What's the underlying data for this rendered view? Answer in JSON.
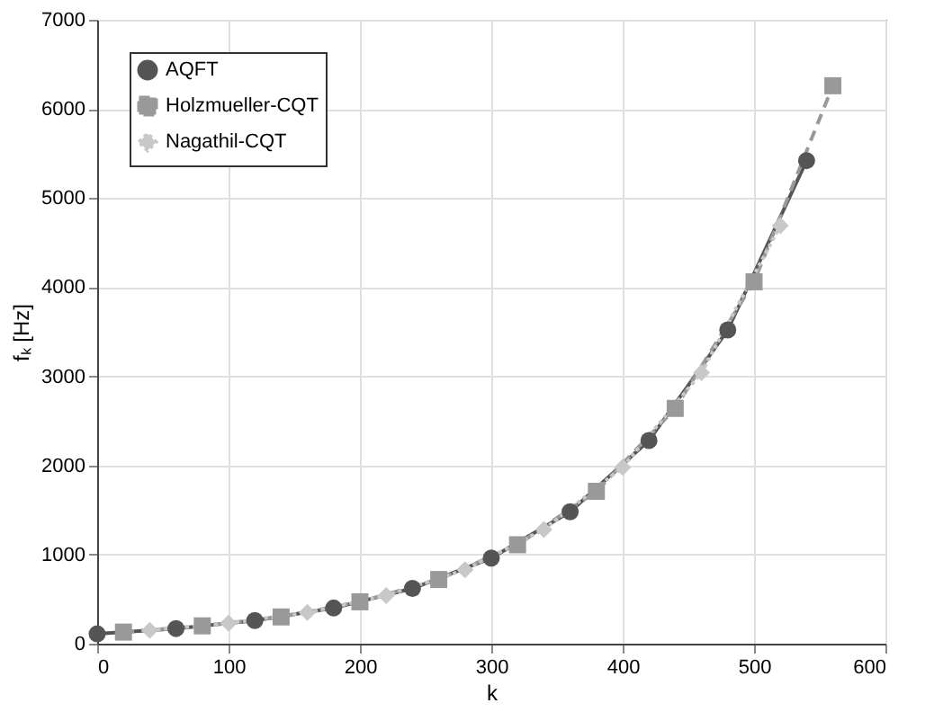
{
  "chart_data": {
    "type": "line",
    "xlabel": "k",
    "ylabel": "fₖ [Hz]",
    "xlim": [
      0,
      600
    ],
    "xticks": [
      0,
      100,
      200,
      300,
      400,
      500,
      600
    ],
    "ylim": [
      0,
      7000
    ],
    "yticks": [
      0,
      1000,
      2000,
      3000,
      4000,
      5000,
      6000,
      7000
    ],
    "grid": true,
    "legend": "top left",
    "series": [
      {
        "name": "AQFT",
        "color": "#555555",
        "marker": "circle",
        "line_style": "solid",
        "x": [
          0,
          60,
          120,
          180,
          240,
          300,
          360,
          420,
          480,
          540
        ],
        "values": [
          110,
          170,
          260,
          400,
          620,
          960,
          1480,
          2280,
          3520,
          5420
        ]
      },
      {
        "name": "Holzmueller-CQT",
        "color": "#999999",
        "marker": "square",
        "line_style": "dashed",
        "x": [
          20,
          80,
          140,
          200,
          260,
          320,
          380,
          440,
          500,
          560
        ],
        "values": [
          130,
          200,
          300,
          470,
          720,
          1110,
          1710,
          2640,
          4060,
          6260
        ]
      },
      {
        "name": "Nagathil-CQT",
        "color": "#c8c8c8",
        "marker": "diamond",
        "line_style": "dotted",
        "x": [
          40,
          100,
          160,
          220,
          280,
          340,
          400,
          460,
          520
        ],
        "values": [
          150,
          230,
          350,
          540,
          830,
          1280,
          1980,
          3040,
          4690
        ]
      }
    ]
  }
}
